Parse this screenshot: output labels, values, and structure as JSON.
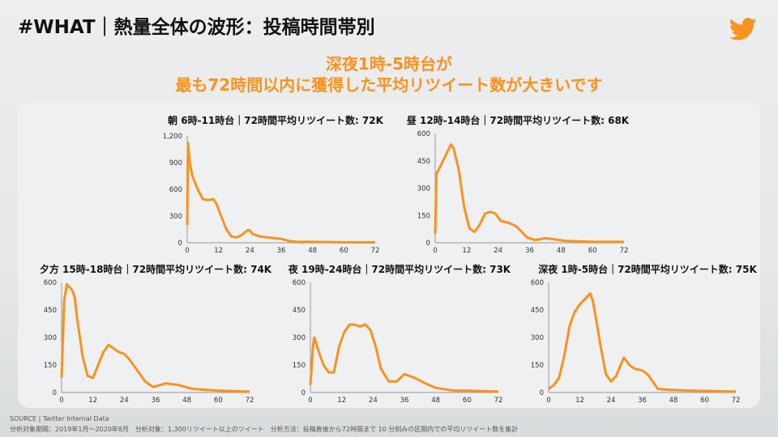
{
  "title": "#WHAT｜熱量全体の波形：投稿時間帯別",
  "headline": [
    "深夜1時-5時台が",
    "最も72時間以内に獲得した平均リツイート数が大きいです"
  ],
  "icons": {
    "logo": "twitter-bird-icon"
  },
  "colors": {
    "accent": "#f7931e",
    "text": "#111111"
  },
  "footer": {
    "source": "SOURCE | Twitter Internal Data",
    "note": "分析対象期間：2019年1月～2020年8月　分析対象：1,300リツイート以上のツイート　分析方法：投稿直後から72時間まで 10 分刻みの区間内での平均リツイート数を集計"
  },
  "chart_data": [
    {
      "type": "line",
      "title": "朝 6時-11時台｜72時間平均リツイート数: 72K",
      "xlim": [
        0,
        72
      ],
      "ylim": [
        0,
        1200
      ],
      "xticks": [
        0,
        12,
        24,
        36,
        48,
        60,
        72
      ],
      "yticks": [
        0,
        300,
        600,
        900,
        1200
      ],
      "ytick_labels": [
        "0",
        "300",
        "600",
        "900",
        "1,200"
      ],
      "x": [
        0,
        0.3,
        1,
        2,
        4,
        6,
        8,
        10,
        11,
        13,
        15,
        17,
        19,
        21,
        23,
        24,
        25,
        28,
        32,
        36,
        39,
        42,
        48,
        60,
        72
      ],
      "y": [
        200,
        1120,
        900,
        750,
        600,
        490,
        480,
        490,
        450,
        300,
        150,
        70,
        60,
        90,
        140,
        140,
        100,
        70,
        55,
        45,
        20,
        10,
        10,
        5,
        5
      ]
    },
    {
      "type": "line",
      "title": "昼 12時-14時台｜72時間平均リツイート数: 68K",
      "xlim": [
        0,
        72
      ],
      "ylim": [
        0,
        600
      ],
      "xticks": [
        0,
        12,
        24,
        36,
        48,
        60,
        72
      ],
      "yticks": [
        0,
        150,
        300,
        450,
        600
      ],
      "ytick_labels": [
        "0",
        "150",
        "300",
        "450",
        "600"
      ],
      "x": [
        0,
        0.5,
        2,
        4,
        6,
        7,
        9,
        11,
        13,
        15,
        17,
        19,
        21,
        23,
        25,
        28,
        31,
        33,
        35,
        38,
        42,
        45,
        50,
        60,
        72
      ],
      "y": [
        50,
        380,
        420,
        480,
        540,
        520,
        400,
        200,
        80,
        60,
        100,
        160,
        170,
        160,
        120,
        110,
        90,
        60,
        30,
        15,
        25,
        20,
        10,
        5,
        5
      ]
    },
    {
      "type": "line",
      "title": "夕方 15時-18時台｜72時間平均リツイート数: 74K",
      "xlim": [
        0,
        72
      ],
      "ylim": [
        0,
        600
      ],
      "xticks": [
        0,
        12,
        24,
        36,
        48,
        60,
        72
      ],
      "yticks": [
        0,
        150,
        300,
        450,
        600
      ],
      "ytick_labels": [
        "0",
        "150",
        "300",
        "450",
        "600"
      ],
      "x": [
        0,
        1,
        2,
        4,
        5,
        6,
        8,
        10,
        12,
        14,
        16,
        18,
        20,
        22,
        24,
        26,
        28,
        30,
        32,
        35,
        40,
        45,
        50,
        60,
        72
      ],
      "y": [
        80,
        500,
        590,
        560,
        520,
        400,
        200,
        90,
        80,
        150,
        220,
        260,
        240,
        220,
        210,
        180,
        140,
        100,
        60,
        30,
        50,
        40,
        20,
        10,
        5
      ]
    },
    {
      "type": "line",
      "title": "夜 19時-24時台｜72時間平均リツイート数: 73K",
      "xlim": [
        0,
        72
      ],
      "ylim": [
        0,
        600
      ],
      "xticks": [
        0,
        12,
        24,
        36,
        48,
        60,
        72
      ],
      "yticks": [
        0,
        150,
        300,
        450,
        600
      ],
      "ytick_labels": [
        "0",
        "150",
        "300",
        "450",
        "600"
      ],
      "x": [
        0,
        1,
        1.5,
        3,
        5,
        7,
        9,
        11,
        13,
        15,
        17,
        19,
        21,
        23,
        25,
        27,
        30,
        33,
        36,
        40,
        44,
        48,
        55,
        60,
        72
      ],
      "y": [
        40,
        250,
        300,
        230,
        150,
        110,
        110,
        250,
        330,
        370,
        370,
        360,
        370,
        340,
        250,
        130,
        60,
        60,
        100,
        80,
        50,
        25,
        10,
        10,
        5
      ]
    },
    {
      "type": "line",
      "title": "深夜 1時-5時台｜72時間平均リツイート数: 75K",
      "xlim": [
        0,
        72
      ],
      "ylim": [
        0,
        600
      ],
      "xticks": [
        0,
        12,
        24,
        36,
        48,
        60,
        72
      ],
      "yticks": [
        0,
        150,
        300,
        450,
        600
      ],
      "ytick_labels": [
        "0",
        "150",
        "300",
        "450",
        "600"
      ],
      "x": [
        0,
        2,
        4,
        6,
        8,
        10,
        12,
        14,
        16,
        17,
        18,
        20,
        22,
        24,
        26,
        28,
        29,
        31,
        33,
        36,
        38,
        40,
        42,
        46,
        55,
        72
      ],
      "y": [
        20,
        40,
        80,
        200,
        360,
        440,
        480,
        510,
        540,
        500,
        420,
        250,
        100,
        60,
        90,
        160,
        190,
        150,
        130,
        120,
        100,
        60,
        20,
        15,
        10,
        5
      ]
    }
  ]
}
